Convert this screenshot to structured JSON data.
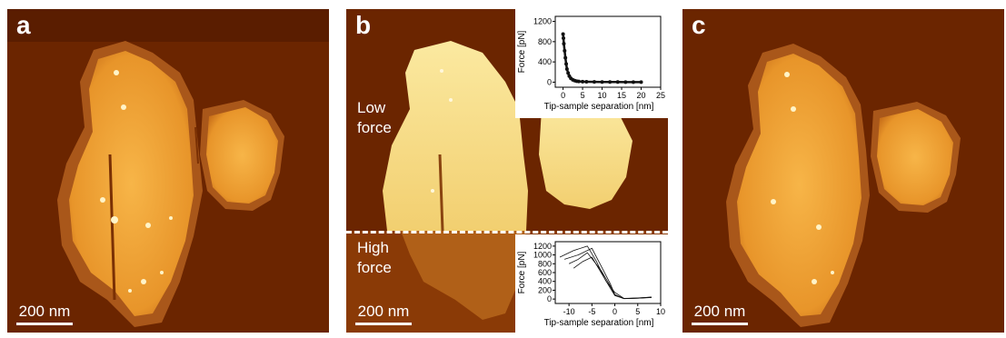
{
  "figure": {
    "panels": [
      {
        "label": "a",
        "scale_bar": "200 nm"
      },
      {
        "label": "b",
        "scale_bar": "200 nm",
        "low_force_label": "Low\nforce",
        "high_force_label": "High\nforce"
      },
      {
        "label": "c",
        "scale_bar": "200 nm"
      }
    ]
  },
  "chart_data": [
    {
      "type": "scatter",
      "title": "",
      "xlabel": "Tip-sample separation [nm]",
      "ylabel": "Force [pN]",
      "xlim": [
        -2,
        25
      ],
      "ylim": [
        -100,
        1300
      ],
      "xticks": [
        0,
        5,
        10,
        15,
        20,
        25
      ],
      "yticks": [
        0,
        400,
        800,
        1200
      ],
      "series": [
        {
          "x": [
            0,
            0.1,
            0.2,
            0.4,
            0.6,
            0.8,
            1.0,
            1.3,
            1.6,
            2.0,
            2.5,
            3.0,
            3.5,
            4,
            5,
            6,
            8,
            10,
            12,
            14,
            16,
            18,
            20
          ],
          "values": [
            950,
            870,
            760,
            620,
            480,
            360,
            260,
            180,
            120,
            75,
            45,
            30,
            20,
            15,
            10,
            8,
            5,
            4,
            3,
            3,
            2,
            2,
            2
          ]
        }
      ]
    },
    {
      "type": "line",
      "title": "",
      "xlabel": "Tip-sample separation [nm]",
      "ylabel": "Force [pN]",
      "xlim": [
        -13,
        10
      ],
      "ylim": [
        -100,
        1300
      ],
      "xticks": [
        -10,
        -5,
        0,
        5,
        10
      ],
      "yticks": [
        0,
        200,
        400,
        600,
        800,
        1000,
        1200
      ],
      "series": [
        {
          "x": [
            -11,
            -8,
            -5,
            -3,
            -1,
            0,
            2,
            5,
            8
          ],
          "values": [
            900,
            1000,
            1150,
            750,
            350,
            100,
            10,
            20,
            40
          ]
        },
        {
          "x": [
            -12,
            -9,
            -6,
            -4,
            -2,
            0,
            2,
            5,
            8
          ],
          "values": [
            950,
            1100,
            1200,
            850,
            420,
            150,
            15,
            22,
            45
          ]
        },
        {
          "x": [
            -10,
            -8,
            -6,
            -3,
            -1,
            0,
            2,
            5,
            8
          ],
          "values": [
            800,
            900,
            1050,
            650,
            300,
            90,
            8,
            18,
            35
          ]
        },
        {
          "x": [
            -9,
            -7,
            -5,
            -3,
            -1,
            0,
            2,
            5,
            8
          ],
          "values": [
            700,
            850,
            950,
            600,
            250,
            80,
            10,
            25,
            40
          ]
        }
      ]
    }
  ]
}
